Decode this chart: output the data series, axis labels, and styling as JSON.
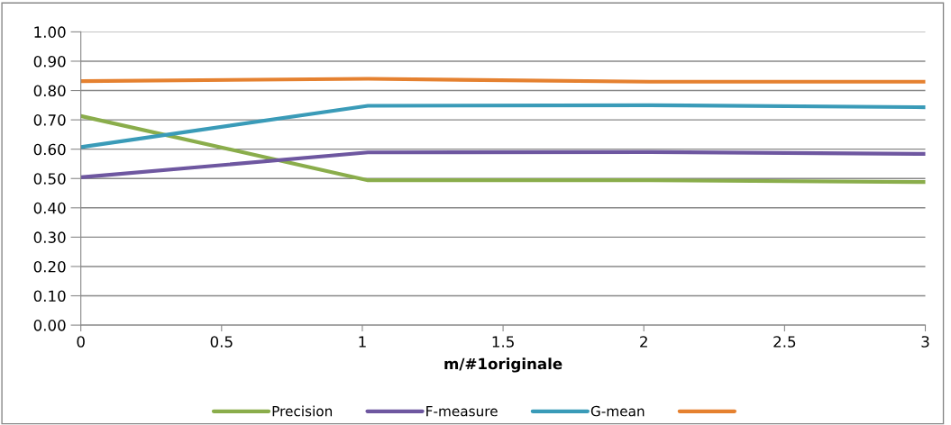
{
  "chart_data": {
    "type": "line",
    "xlabel": "m/#1originale",
    "series": [
      {
        "name": "Precision",
        "color": "#8aad4b",
        "x": [
          0,
          1.02,
          2.02,
          3
        ],
        "values": [
          0.713,
          0.494,
          0.494,
          0.488
        ]
      },
      {
        "name": "F-measure",
        "color": "#6e57a0",
        "x": [
          0,
          1.02,
          2.02,
          3
        ],
        "values": [
          0.504,
          0.589,
          0.59,
          0.584
        ]
      },
      {
        "name": "G-mean",
        "color": "#3a9bb8",
        "x": [
          0,
          1.02,
          2.02,
          3
        ],
        "values": [
          0.607,
          0.748,
          0.75,
          0.743
        ]
      },
      {
        "color": "#e58130",
        "x": [
          0,
          1.02,
          2.02,
          3
        ],
        "values": [
          0.832,
          0.84,
          0.83,
          0.83
        ]
      }
    ],
    "xlim": [
      0,
      3
    ],
    "xticks": [
      0,
      0.5,
      1,
      1.5,
      2,
      2.5,
      3
    ],
    "ylim": [
      0,
      1
    ],
    "yticks": [
      {
        "value": 0,
        "label": "0.00"
      },
      {
        "value": 0.1,
        "label": "0.10"
      },
      {
        "value": 0.2,
        "label": "0.20"
      },
      {
        "value": 0.3,
        "label": "0.30"
      },
      {
        "value": 0.4,
        "label": "0.40"
      },
      {
        "value": 0.5,
        "label": "0.50"
      },
      {
        "value": 0.6,
        "label": "0.60"
      },
      {
        "value": 0.7,
        "label": "0.70"
      },
      {
        "value": 0.8,
        "label": "0.80"
      },
      {
        "value": 0.9,
        "label": "0.90"
      },
      {
        "value": 1,
        "label": "1.00"
      }
    ],
    "grid": "y",
    "legend": "bottom",
    "marker": "none",
    "line_style": "solid"
  }
}
